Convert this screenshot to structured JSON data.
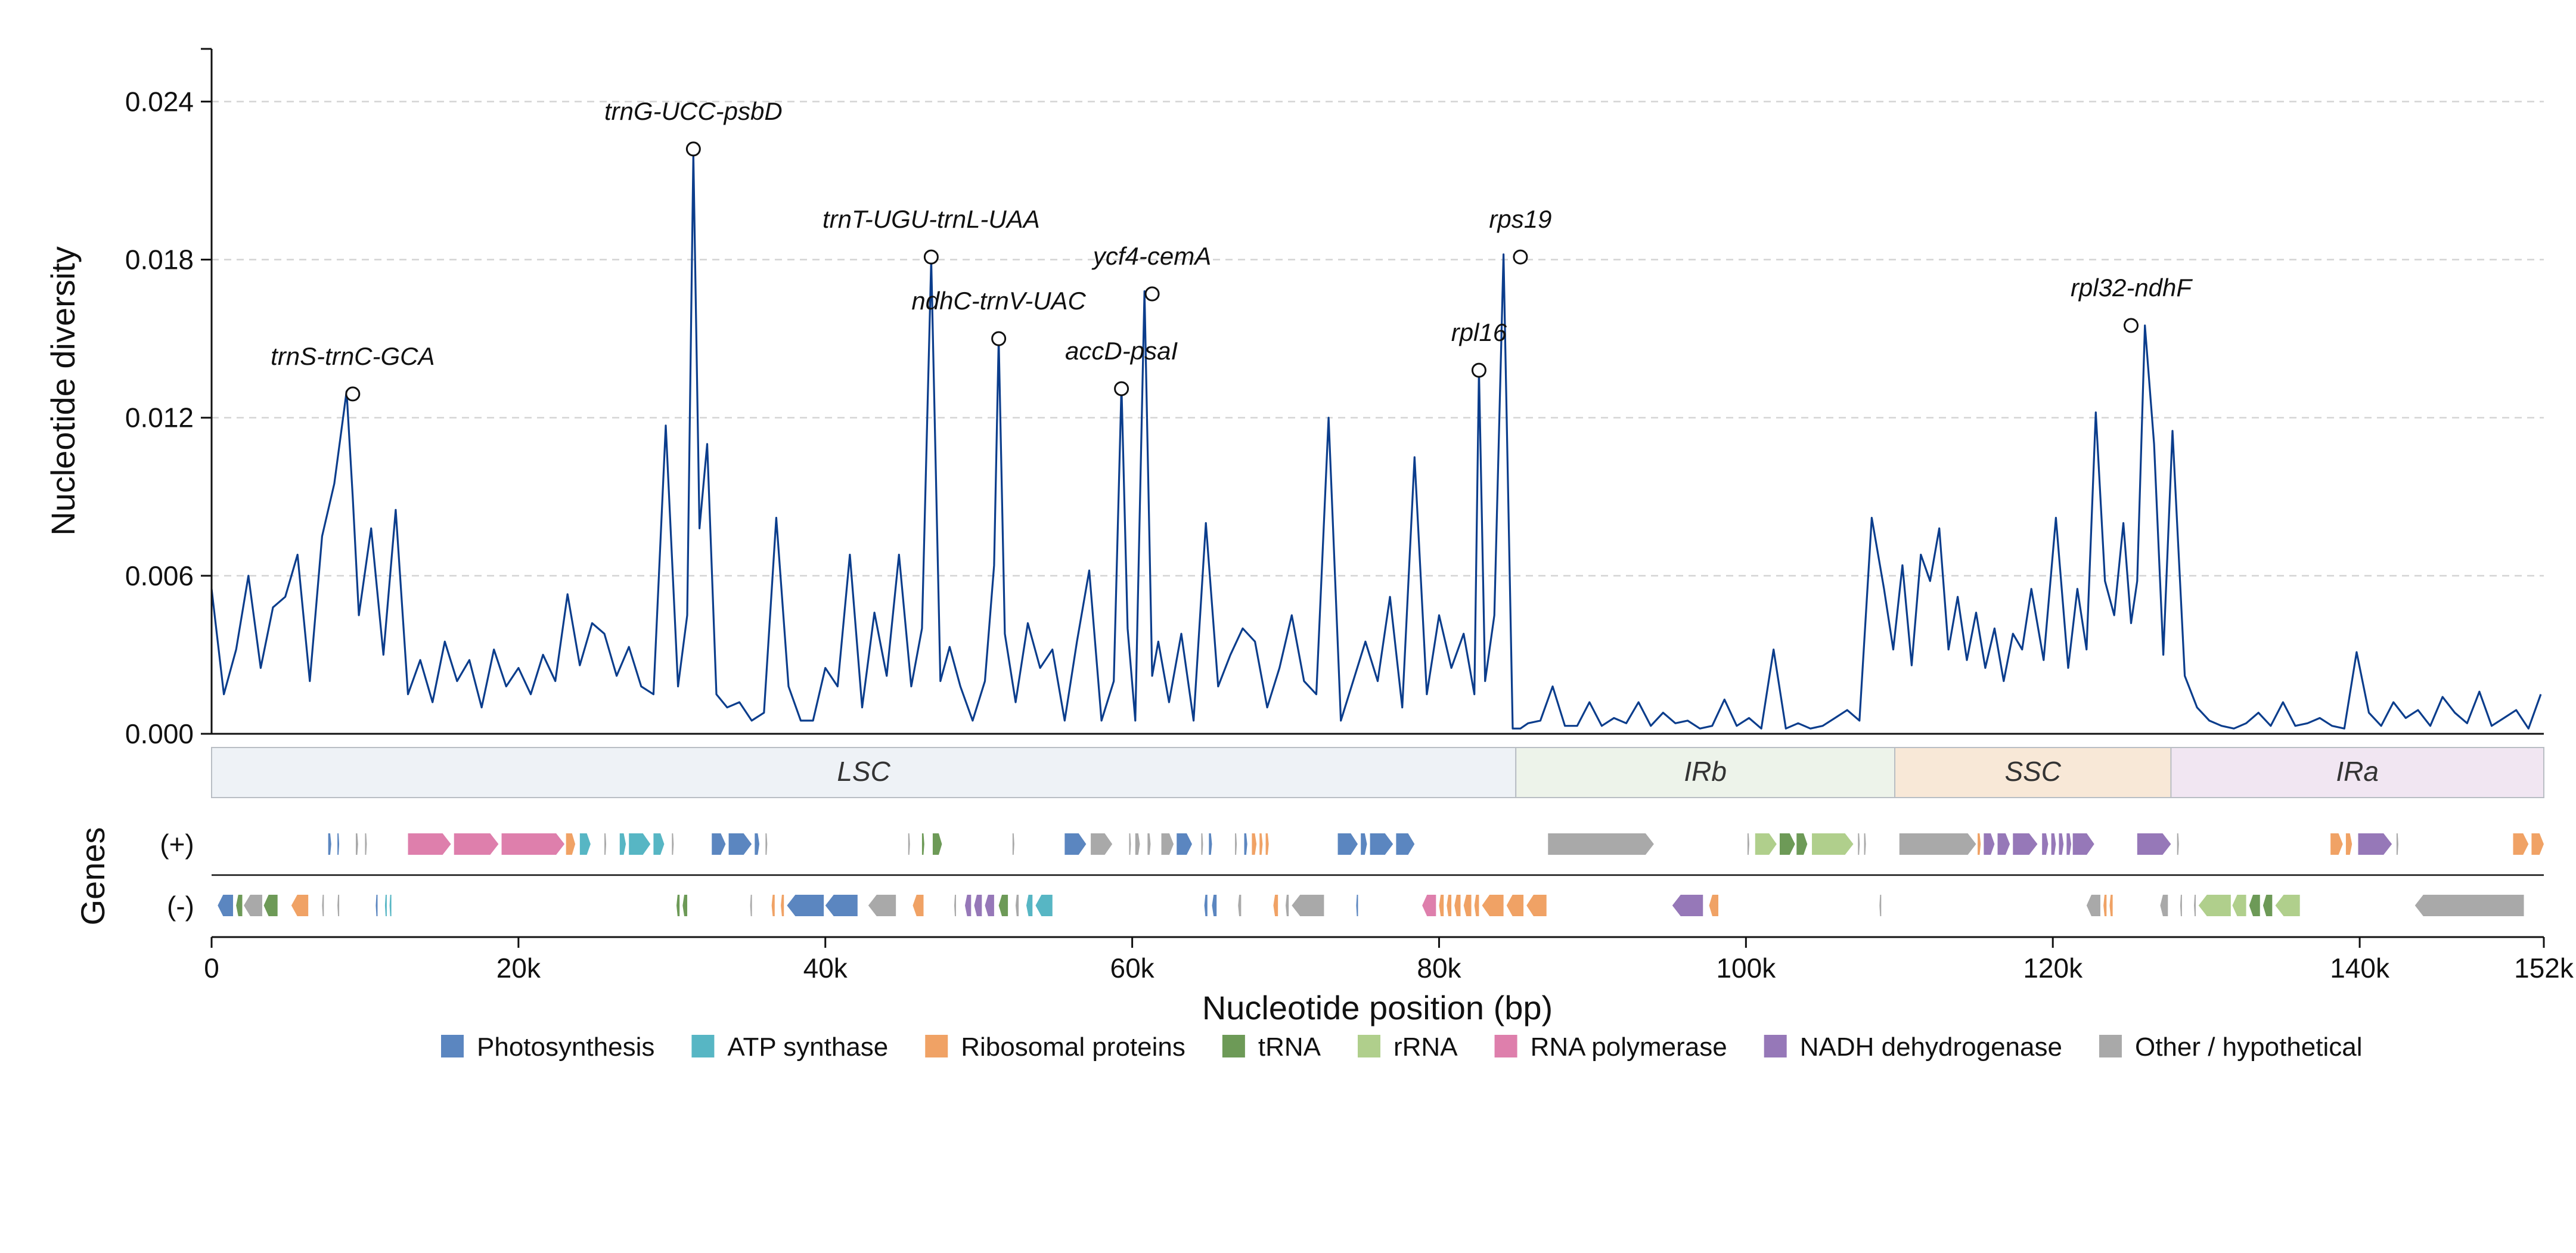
{
  "chart_data": {
    "type": "line",
    "ylabel": "Nucleotide diversity",
    "xlabel": "Nucleotide position (bp)",
    "ylim": [
      0,
      0.026
    ],
    "yticks": [
      0,
      0.006,
      0.012,
      0.018,
      0.024
    ],
    "ytick_labels": [
      "0.000",
      "0.006",
      "0.012",
      "0.018",
      "0.024"
    ],
    "xlim": [
      0,
      152000
    ],
    "xticks": [
      0,
      20000,
      40000,
      60000,
      80000,
      100000,
      120000,
      140000,
      152000
    ],
    "xtick_labels": [
      "0",
      "20k",
      "40k",
      "60k",
      "80k",
      "100k",
      "120k",
      "140k",
      "152k"
    ],
    "grid": "y-dashed",
    "line_color": "#0b3d8c",
    "series": [
      {
        "x": [
          0,
          800,
          1600,
          2400,
          3200,
          4000,
          4800,
          5600,
          6400,
          7200,
          8000,
          8800,
          9200,
          9600,
          10400,
          11200,
          12000,
          12800,
          13600,
          14400,
          15200,
          16000,
          16800,
          17600,
          18400,
          19200,
          20000,
          20800,
          21600,
          22400,
          23200,
          24000,
          24800,
          25600,
          26400,
          27200,
          28000,
          28800,
          29600,
          30400,
          31000,
          31400,
          31800,
          32300,
          32900,
          33600,
          34400,
          35200,
          36000,
          36800,
          37600,
          38400,
          39200,
          40000,
          40800,
          41600,
          42400,
          43200,
          44000,
          44800,
          45600,
          46300,
          46900,
          47500,
          48100,
          48800,
          49600,
          50400,
          51000,
          51300,
          51700,
          52400,
          53200,
          54000,
          54800,
          55600,
          56400,
          57200,
          58000,
          58800,
          59300,
          59700,
          60200,
          60800,
          61300,
          61700,
          62400,
          63200,
          64000,
          64800,
          65600,
          66400,
          67200,
          68000,
          68800,
          69600,
          70400,
          71200,
          72000,
          72800,
          73600,
          74400,
          75200,
          76000,
          76800,
          77600,
          78400,
          79200,
          80000,
          80800,
          81600,
          82300,
          82600,
          83000,
          83600,
          84200,
          84800,
          85300,
          85800,
          86600,
          87400,
          88200,
          89000,
          89800,
          90600,
          91400,
          92200,
          93000,
          93800,
          94600,
          95400,
          96200,
          97000,
          97800,
          98600,
          99400,
          100200,
          101000,
          101800,
          102600,
          103400,
          104200,
          105000,
          105800,
          106600,
          107400,
          108200,
          109000,
          109600,
          110200,
          110800,
          111400,
          112000,
          112600,
          113200,
          113800,
          114400,
          115000,
          115600,
          116200,
          116800,
          117400,
          118000,
          118600,
          119400,
          120200,
          121000,
          121600,
          122200,
          122800,
          123400,
          124000,
          124600,
          125100,
          125500,
          126000,
          126600,
          127200,
          127800,
          128600,
          129400,
          130200,
          131000,
          131800,
          132600,
          133400,
          134200,
          135000,
          135800,
          136600,
          137400,
          138200,
          139000,
          139800,
          140600,
          141400,
          142200,
          143000,
          143800,
          144600,
          145400,
          146200,
          147000,
          147800,
          148600,
          149400,
          150200,
          151000,
          151800
        ],
        "y": [
          0.0055,
          0.0015,
          0.0032,
          0.006,
          0.0025,
          0.0048,
          0.0052,
          0.0068,
          0.002,
          0.0075,
          0.0095,
          0.013,
          0.009,
          0.0045,
          0.0078,
          0.003,
          0.0085,
          0.0015,
          0.0028,
          0.0012,
          0.0035,
          0.002,
          0.0028,
          0.001,
          0.0032,
          0.0018,
          0.0025,
          0.0015,
          0.003,
          0.002,
          0.0053,
          0.0026,
          0.0042,
          0.0038,
          0.0022,
          0.0033,
          0.0018,
          0.0015,
          0.0117,
          0.0018,
          0.0045,
          0.022,
          0.0078,
          0.011,
          0.0015,
          0.001,
          0.0012,
          0.0005,
          0.0008,
          0.0082,
          0.0018,
          0.0005,
          0.0005,
          0.0025,
          0.0018,
          0.0068,
          0.001,
          0.0046,
          0.0022,
          0.0068,
          0.0018,
          0.004,
          0.018,
          0.002,
          0.0033,
          0.0018,
          0.0005,
          0.002,
          0.0064,
          0.015,
          0.0038,
          0.0012,
          0.0042,
          0.0025,
          0.0032,
          0.0005,
          0.0035,
          0.0062,
          0.0005,
          0.002,
          0.0132,
          0.004,
          0.0005,
          0.0168,
          0.0022,
          0.0035,
          0.0012,
          0.0038,
          0.0005,
          0.008,
          0.0018,
          0.003,
          0.004,
          0.0035,
          0.001,
          0.0025,
          0.0045,
          0.002,
          0.0015,
          0.012,
          0.0005,
          0.002,
          0.0035,
          0.002,
          0.0052,
          0.001,
          0.0105,
          0.0015,
          0.0045,
          0.0025,
          0.0038,
          0.0015,
          0.0138,
          0.002,
          0.0045,
          0.0182,
          0.0002,
          0.0002,
          0.0004,
          0.0005,
          0.0018,
          0.0003,
          0.0003,
          0.0012,
          0.0003,
          0.0006,
          0.0004,
          0.0012,
          0.0003,
          0.0008,
          0.0004,
          0.0005,
          0.0002,
          0.0003,
          0.0013,
          0.0003,
          0.0006,
          0.0002,
          0.0032,
          0.0002,
          0.0004,
          0.0002,
          0.0003,
          0.0006,
          0.0009,
          0.0005,
          0.0082,
          0.0055,
          0.0032,
          0.0064,
          0.0026,
          0.0068,
          0.0058,
          0.0078,
          0.0032,
          0.0052,
          0.0028,
          0.0046,
          0.0025,
          0.004,
          0.002,
          0.0038,
          0.0032,
          0.0055,
          0.0028,
          0.0082,
          0.0025,
          0.0055,
          0.0032,
          0.0122,
          0.0058,
          0.0045,
          0.008,
          0.0042,
          0.0058,
          0.0155,
          0.011,
          0.003,
          0.0115,
          0.0022,
          0.001,
          0.0005,
          0.0003,
          0.0002,
          0.0004,
          0.0008,
          0.0003,
          0.0012,
          0.0003,
          0.0004,
          0.0006,
          0.0003,
          0.0002,
          0.0031,
          0.0008,
          0.0003,
          0.0012,
          0.0006,
          0.0009,
          0.0003,
          0.0014,
          0.0008,
          0.0004,
          0.0016,
          0.0003,
          0.0006,
          0.0009,
          0.0002,
          0.0015
        ]
      }
    ],
    "annotations": [
      {
        "label": "trnS-trnC-GCA",
        "x": 9200,
        "y": 0.0129
      },
      {
        "label": "trnG-UCC-psbD",
        "x": 31400,
        "y": 0.0222
      },
      {
        "label": "trnT-UGU-trnL-UAA",
        "x": 46900,
        "y": 0.0181
      },
      {
        "label": "ndhC-trnV-UAC",
        "x": 51300,
        "y": 0.015
      },
      {
        "label": "accD-psaI",
        "x": 59300,
        "y": 0.0131
      },
      {
        "label": "ycf4-cemA",
        "x": 61300,
        "y": 0.0167
      },
      {
        "label": "rpl16",
        "x": 82600,
        "y": 0.0138
      },
      {
        "label": "rps19",
        "x": 85300,
        "y": 0.0181
      },
      {
        "label": "rpl32-ndhF",
        "x": 125100,
        "y": 0.0155
      }
    ],
    "regions": [
      {
        "label": "LSC",
        "start": 0,
        "end": 85000,
        "color": "#eef2f6"
      },
      {
        "label": "IRb",
        "start": 85000,
        "end": 109700,
        "color": "#edf3ea"
      },
      {
        "label": "SSC",
        "start": 109700,
        "end": 127700,
        "color": "#f8e8d7"
      },
      {
        "label": "IRa",
        "start": 127700,
        "end": 152000,
        "color": "#f1e6f2"
      }
    ],
    "genes_label": "Genes",
    "strand_labels": [
      "(+)",
      "(-)"
    ],
    "gene_categories": [
      {
        "key": "photo",
        "label": "Photosynthesis",
        "color": "#5b86c0"
      },
      {
        "key": "atp",
        "label": "ATP synthase",
        "color": "#57b6c4"
      },
      {
        "key": "ribo",
        "label": "Ribosomal proteins",
        "color": "#f0a265"
      },
      {
        "key": "trna",
        "label": "tRNA",
        "color": "#6d9a57"
      },
      {
        "key": "rrna",
        "label": "rRNA",
        "color": "#b0cf8c"
      },
      {
        "key": "rnap",
        "label": "RNA polymerase",
        "color": "#de7fac"
      },
      {
        "key": "ndh",
        "label": "NADH dehydrogenase",
        "color": "#9678b8"
      },
      {
        "key": "other",
        "label": "Other / hypothetical",
        "color": "#a9a9a9"
      }
    ],
    "genes_plus": [
      [
        "photo",
        7600,
        7800
      ],
      [
        "photo",
        8200,
        8300
      ],
      [
        "other",
        9400,
        9550
      ],
      [
        "other",
        10000,
        10100
      ],
      [
        "rnap",
        12800,
        15600
      ],
      [
        "rnap",
        15800,
        18700
      ],
      [
        "rnap",
        18900,
        23000
      ],
      [
        "ribo",
        23100,
        23700
      ],
      [
        "atp",
        24000,
        24700
      ],
      [
        "other",
        25600,
        25700
      ],
      [
        "atp",
        26600,
        27000
      ],
      [
        "atp",
        27200,
        28600
      ],
      [
        "atp",
        28800,
        29500
      ],
      [
        "other",
        30000,
        30100
      ],
      [
        "photo",
        32600,
        33500
      ],
      [
        "photo",
        33700,
        35200
      ],
      [
        "photo",
        35400,
        35700
      ],
      [
        "other",
        36100,
        36200
      ],
      [
        "other",
        45400,
        45500
      ],
      [
        "trna",
        46300,
        46450
      ],
      [
        "trna",
        47000,
        47600
      ],
      [
        "other",
        52200,
        52300
      ],
      [
        "photo",
        55600,
        57000
      ],
      [
        "other",
        57300,
        58700
      ],
      [
        "other",
        59800,
        59900
      ],
      [
        "other",
        60200,
        60500
      ],
      [
        "other",
        61000,
        61200
      ],
      [
        "other",
        61900,
        62700
      ],
      [
        "photo",
        62900,
        63900
      ],
      [
        "other",
        64500,
        64600
      ],
      [
        "photo",
        65000,
        65200
      ],
      [
        "other",
        66700,
        66800
      ],
      [
        "photo",
        67300,
        67500
      ],
      [
        "ribo",
        67800,
        68100
      ],
      [
        "ribo",
        68300,
        68500
      ],
      [
        "ribo",
        68700,
        68900
      ],
      [
        "photo",
        73400,
        74700
      ],
      [
        "photo",
        74900,
        75300
      ],
      [
        "photo",
        75500,
        77000
      ],
      [
        "photo",
        77200,
        78400
      ],
      [
        "other",
        87100,
        94000
      ],
      [
        "other",
        100100,
        100200
      ],
      [
        "rrna",
        100600,
        102000
      ],
      [
        "trna",
        102200,
        103200
      ],
      [
        "trna",
        103300,
        104000
      ],
      [
        "rrna",
        104300,
        107000
      ],
      [
        "other",
        107300,
        107400
      ],
      [
        "other",
        107700,
        107800
      ],
      [
        "other",
        110000,
        115000
      ],
      [
        "ribo",
        115100,
        115300
      ],
      [
        "ndh",
        115500,
        116200
      ],
      [
        "ndh",
        116400,
        117200
      ],
      [
        "ndh",
        117400,
        119000
      ],
      [
        "ndh",
        119300,
        119700
      ],
      [
        "ndh",
        119900,
        120200
      ],
      [
        "ndh",
        120400,
        120700
      ],
      [
        "ndh",
        120900,
        121200
      ],
      [
        "ndh",
        121300,
        122700
      ],
      [
        "ndh",
        125500,
        127700
      ],
      [
        "other",
        128100,
        128200
      ],
      [
        "ribo",
        138100,
        138900
      ],
      [
        "ribo",
        139100,
        139500
      ],
      [
        "ndh",
        139900,
        142100
      ],
      [
        "other",
        142400,
        142500
      ],
      [
        "ribo",
        150000,
        151000
      ],
      [
        "ribo",
        151200,
        152000
      ]
    ],
    "genes_minus": [
      [
        "photo",
        400,
        1400
      ],
      [
        "trna",
        1600,
        2000
      ],
      [
        "other",
        2100,
        3300
      ],
      [
        "trna",
        3400,
        4300
      ],
      [
        "ribo",
        5200,
        6300
      ],
      [
        "other",
        7200,
        7300
      ],
      [
        "other",
        8200,
        8300
      ],
      [
        "photo",
        10700,
        10800
      ],
      [
        "atp",
        11300,
        11400
      ],
      [
        "atp",
        11600,
        11700
      ],
      [
        "trna",
        30300,
        30500
      ],
      [
        "trna",
        30700,
        31000
      ],
      [
        "other",
        35100,
        35200
      ],
      [
        "ribo",
        36500,
        36700
      ],
      [
        "ribo",
        37100,
        37300
      ],
      [
        "photo",
        37500,
        39900
      ],
      [
        "photo",
        40000,
        42100
      ],
      [
        "other",
        42800,
        44600
      ],
      [
        "ribo",
        45700,
        46400
      ],
      [
        "other",
        48400,
        48500
      ],
      [
        "ndh",
        49100,
        49500
      ],
      [
        "ndh",
        49700,
        50200
      ],
      [
        "ndh",
        50400,
        51000
      ],
      [
        "trna",
        51300,
        51900
      ],
      [
        "other",
        52400,
        52600
      ],
      [
        "atp",
        53100,
        53500
      ],
      [
        "atp",
        53700,
        54800
      ],
      [
        "photo",
        64700,
        64900
      ],
      [
        "photo",
        65200,
        65500
      ],
      [
        "other",
        66900,
        67100
      ],
      [
        "ribo",
        69200,
        69500
      ],
      [
        "other",
        70000,
        70200
      ],
      [
        "other",
        70400,
        72500
      ],
      [
        "photo",
        74600,
        74700
      ],
      [
        "rnap",
        78900,
        79800
      ],
      [
        "ribo",
        80000,
        80300
      ],
      [
        "ribo",
        80500,
        80800
      ],
      [
        "ribo",
        81000,
        81400
      ],
      [
        "ribo",
        81600,
        82100
      ],
      [
        "ribo",
        82300,
        82600
      ],
      [
        "ribo",
        82800,
        84200
      ],
      [
        "ribo",
        84400,
        85500
      ],
      [
        "ribo",
        85700,
        87000
      ],
      [
        "ndh",
        95200,
        97200
      ],
      [
        "ribo",
        97600,
        98200
      ],
      [
        "other",
        108700,
        108800
      ],
      [
        "other",
        122200,
        123100
      ],
      [
        "ribo",
        123300,
        123500
      ],
      [
        "ribo",
        123700,
        123900
      ],
      [
        "other",
        127000,
        127500
      ],
      [
        "other",
        128300,
        128400
      ],
      [
        "other",
        129200,
        129300
      ],
      [
        "rrna",
        129500,
        131600
      ],
      [
        "rrna",
        131700,
        132600
      ],
      [
        "trna",
        132800,
        133500
      ],
      [
        "trna",
        133700,
        134300
      ],
      [
        "rrna",
        134500,
        136100
      ],
      [
        "other",
        143600,
        150700
      ]
    ]
  }
}
